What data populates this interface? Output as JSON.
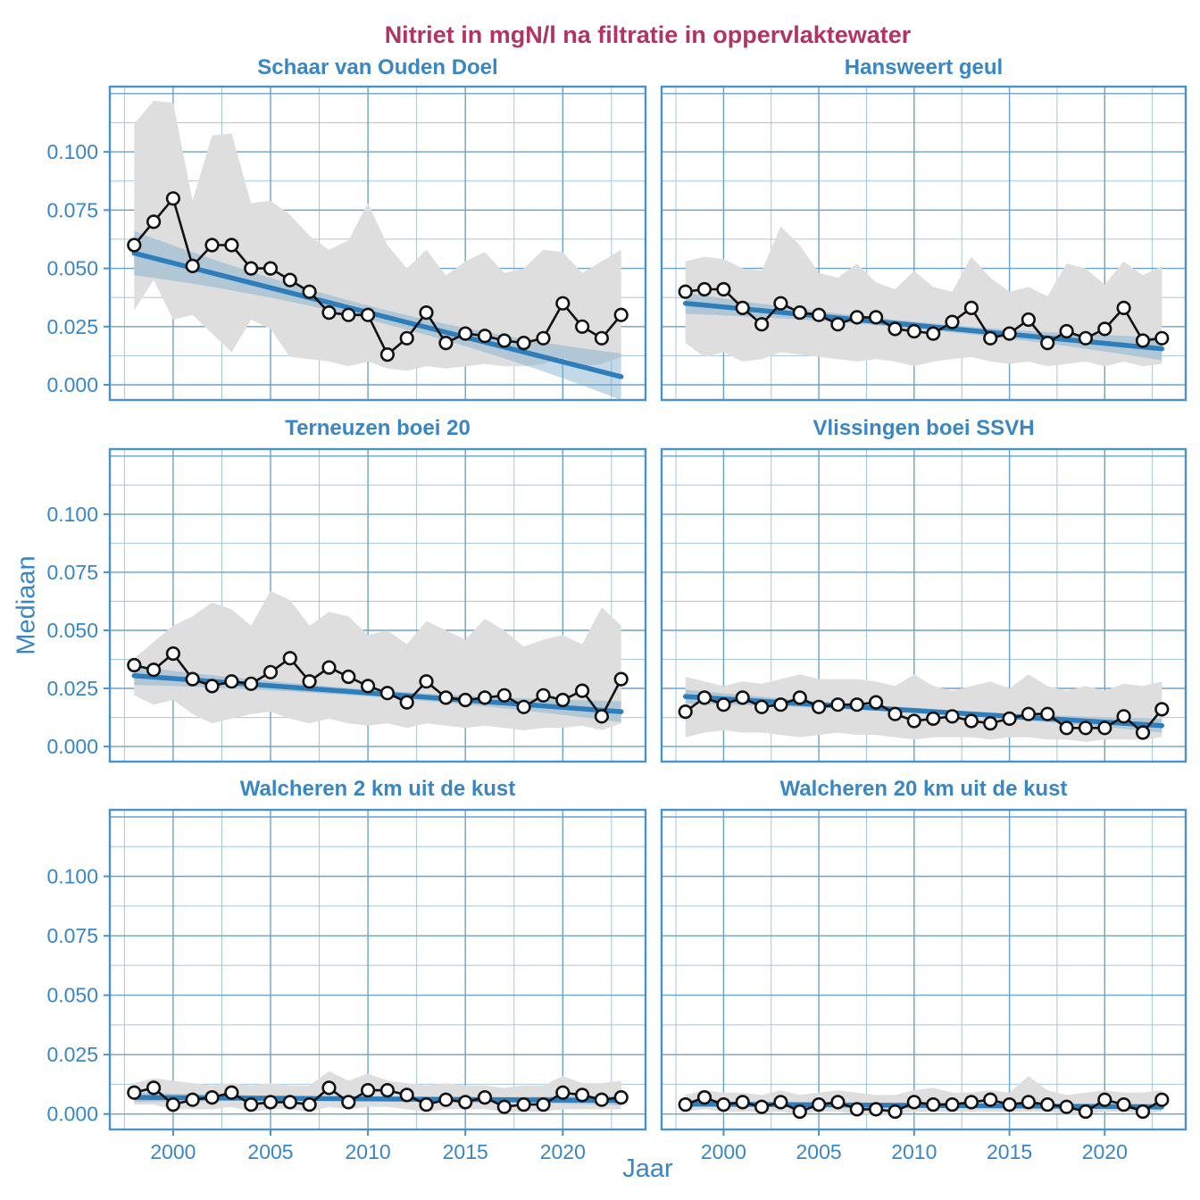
{
  "title": "Nitriet in mgN/l na filtratie in oppervlaktewater",
  "axes": {
    "x_label": "Jaar",
    "y_label": "Mediaan",
    "x_ticks": [
      2000,
      2005,
      2010,
      2015,
      2020
    ],
    "x_minor_ticks": [
      1997.5,
      2002.5,
      2007.5,
      2012.5,
      2017.5,
      2022.5
    ],
    "y_ticks": [
      0.0,
      0.025,
      0.05,
      0.075,
      0.1,
      0.125
    ],
    "y_tick_labels": [
      "0.000",
      "0.025",
      "0.050",
      "0.075",
      "0.100",
      ""
    ],
    "y_minor_ticks": [
      0.0125,
      0.0375,
      0.0625,
      0.0875,
      0.1125
    ],
    "x_domain": [
      1996.75,
      2024.25
    ],
    "y_domain": [
      -0.0065,
      0.128
    ]
  },
  "colors": {
    "title": "#b23366",
    "blue_text": "#3a86c4",
    "trend_line": "#2e7ebc",
    "trend_ci_fill": "rgb(125,170,205)",
    "trend_ci_opacity": 0.45,
    "range_band": "#dedede",
    "median_line": "#111111",
    "marker_fill": "#ffffff",
    "grid_major": "#6aa2cc",
    "grid_minor": "#a5c6e0",
    "panel_border": "#4b92c6"
  },
  "chart_data": [
    {
      "type": "line",
      "title": "Schaar van Ouden Doel",
      "x": [
        1998,
        1999,
        2000,
        2001,
        2002,
        2003,
        2004,
        2005,
        2006,
        2007,
        2008,
        2009,
        2010,
        2011,
        2012,
        2013,
        2014,
        2015,
        2016,
        2017,
        2018,
        2019,
        2020,
        2021,
        2022,
        2023
      ],
      "median": [
        0.06,
        0.07,
        0.08,
        0.051,
        0.06,
        0.06,
        0.05,
        0.05,
        0.045,
        0.04,
        0.031,
        0.03,
        0.03,
        0.013,
        0.02,
        0.031,
        0.018,
        0.022,
        0.021,
        0.019,
        0.018,
        0.02,
        0.035,
        0.025,
        0.02,
        0.03
      ],
      "band_upper": [
        0.112,
        0.122,
        0.121,
        0.079,
        0.107,
        0.108,
        0.078,
        0.079,
        0.073,
        0.064,
        0.058,
        0.062,
        0.078,
        0.06,
        0.05,
        0.058,
        0.047,
        0.053,
        0.057,
        0.048,
        0.05,
        0.058,
        0.057,
        0.048,
        0.053,
        0.058
      ],
      "band_lower": [
        0.032,
        0.045,
        0.028,
        0.03,
        0.022,
        0.014,
        0.028,
        0.024,
        0.012,
        0.011,
        0.01,
        0.008,
        0.01,
        0.007,
        0.006,
        0.008,
        0.007,
        0.008,
        0.009,
        0.008,
        0.008,
        0.009,
        0.012,
        0.008,
        0.009,
        0.012
      ],
      "trend": {
        "start": 0.0565,
        "end": 0.0035,
        "ci_start": 0.0095,
        "ci_mid": 0.003,
        "ci_end": 0.01
      }
    },
    {
      "type": "line",
      "title": "Hansweert geul",
      "x": [
        1998,
        1999,
        2000,
        2001,
        2002,
        2003,
        2004,
        2005,
        2006,
        2007,
        2008,
        2009,
        2010,
        2011,
        2012,
        2013,
        2014,
        2015,
        2016,
        2017,
        2018,
        2019,
        2020,
        2021,
        2022,
        2023
      ],
      "median": [
        0.04,
        0.041,
        0.041,
        0.033,
        0.026,
        0.035,
        0.031,
        0.03,
        0.026,
        0.029,
        0.029,
        0.024,
        0.023,
        0.022,
        0.027,
        0.033,
        0.02,
        0.022,
        0.028,
        0.018,
        0.023,
        0.02,
        0.024,
        0.033,
        0.019,
        0.02
      ],
      "band_upper": [
        0.053,
        0.055,
        0.054,
        0.05,
        0.049,
        0.068,
        0.06,
        0.048,
        0.046,
        0.052,
        0.044,
        0.041,
        0.049,
        0.042,
        0.04,
        0.055,
        0.046,
        0.04,
        0.042,
        0.038,
        0.052,
        0.05,
        0.043,
        0.053,
        0.047,
        0.051
      ],
      "band_lower": [
        0.018,
        0.012,
        0.014,
        0.01,
        0.011,
        0.014,
        0.013,
        0.012,
        0.011,
        0.01,
        0.011,
        0.01,
        0.008,
        0.01,
        0.011,
        0.012,
        0.01,
        0.009,
        0.01,
        0.008,
        0.009,
        0.01,
        0.008,
        0.01,
        0.008,
        0.009
      ],
      "trend": {
        "start": 0.035,
        "end": 0.0155,
        "ci_start": 0.0045,
        "ci_mid": 0.0015,
        "ci_end": 0.005
      }
    },
    {
      "type": "line",
      "title": "Terneuzen boei 20",
      "x": [
        1998,
        1999,
        2000,
        2001,
        2002,
        2003,
        2004,
        2005,
        2006,
        2007,
        2008,
        2009,
        2010,
        2011,
        2012,
        2013,
        2014,
        2015,
        2016,
        2017,
        2018,
        2019,
        2020,
        2021,
        2022,
        2023
      ],
      "median": [
        0.035,
        0.033,
        0.04,
        0.029,
        0.026,
        0.028,
        0.027,
        0.032,
        0.038,
        0.028,
        0.034,
        0.03,
        0.026,
        0.023,
        0.019,
        0.028,
        0.021,
        0.02,
        0.021,
        0.022,
        0.017,
        0.022,
        0.02,
        0.024,
        0.013,
        0.029
      ],
      "band_upper": [
        0.038,
        0.045,
        0.052,
        0.056,
        0.062,
        0.059,
        0.052,
        0.067,
        0.063,
        0.052,
        0.058,
        0.056,
        0.048,
        0.05,
        0.044,
        0.054,
        0.05,
        0.046,
        0.055,
        0.05,
        0.043,
        0.046,
        0.048,
        0.044,
        0.06,
        0.052
      ],
      "band_lower": [
        0.022,
        0.018,
        0.02,
        0.014,
        0.01,
        0.012,
        0.014,
        0.015,
        0.012,
        0.01,
        0.012,
        0.01,
        0.009,
        0.01,
        0.008,
        0.01,
        0.009,
        0.008,
        0.009,
        0.008,
        0.007,
        0.008,
        0.008,
        0.009,
        0.007,
        0.01
      ],
      "trend": {
        "start": 0.0305,
        "end": 0.015,
        "ci_start": 0.004,
        "ci_mid": 0.0015,
        "ci_end": 0.0045
      }
    },
    {
      "type": "line",
      "title": "Vlissingen boei SSVH",
      "x": [
        1998,
        1999,
        2000,
        2001,
        2002,
        2003,
        2004,
        2005,
        2006,
        2007,
        2008,
        2009,
        2010,
        2011,
        2012,
        2013,
        2014,
        2015,
        2016,
        2017,
        2018,
        2019,
        2020,
        2021,
        2022,
        2023
      ],
      "median": [
        0.015,
        0.021,
        0.018,
        0.021,
        0.017,
        0.018,
        0.021,
        0.017,
        0.018,
        0.018,
        0.019,
        0.014,
        0.011,
        0.012,
        0.013,
        0.011,
        0.01,
        0.012,
        0.014,
        0.014,
        0.008,
        0.008,
        0.008,
        0.013,
        0.006,
        0.016
      ],
      "band_upper": [
        0.03,
        0.028,
        0.026,
        0.028,
        0.027,
        0.029,
        0.031,
        0.029,
        0.029,
        0.029,
        0.028,
        0.026,
        0.031,
        0.026,
        0.024,
        0.026,
        0.028,
        0.025,
        0.031,
        0.026,
        0.024,
        0.026,
        0.024,
        0.027,
        0.026,
        0.028
      ],
      "band_lower": [
        0.004,
        0.006,
        0.007,
        0.006,
        0.006,
        0.005,
        0.004,
        0.005,
        0.006,
        0.005,
        0.005,
        0.004,
        0.003,
        0.004,
        0.004,
        0.004,
        0.003,
        0.004,
        0.004,
        0.003,
        0.003,
        0.002,
        0.003,
        0.003,
        0.003,
        0.004
      ],
      "trend": {
        "start": 0.0215,
        "end": 0.009,
        "ci_start": 0.003,
        "ci_mid": 0.001,
        "ci_end": 0.003
      }
    },
    {
      "type": "line",
      "title": "Walcheren 2 km uit de kust",
      "x": [
        1998,
        1999,
        2000,
        2001,
        2002,
        2003,
        2004,
        2005,
        2006,
        2007,
        2008,
        2009,
        2010,
        2011,
        2012,
        2013,
        2014,
        2015,
        2016,
        2017,
        2018,
        2019,
        2020,
        2021,
        2022,
        2023
      ],
      "median": [
        0.009,
        0.011,
        0.004,
        0.006,
        0.007,
        0.009,
        0.004,
        0.005,
        0.005,
        0.004,
        0.011,
        0.005,
        0.01,
        0.01,
        0.008,
        0.004,
        0.006,
        0.005,
        0.007,
        0.003,
        0.004,
        0.004,
        0.009,
        0.008,
        0.006,
        0.007
      ],
      "band_upper": [
        0.013,
        0.015,
        0.014,
        0.013,
        0.012,
        0.013,
        0.012,
        0.013,
        0.012,
        0.012,
        0.018,
        0.014,
        0.017,
        0.014,
        0.013,
        0.012,
        0.013,
        0.012,
        0.012,
        0.011,
        0.012,
        0.012,
        0.016,
        0.013,
        0.013,
        0.014
      ],
      "band_lower": [
        0.004,
        0.004,
        0.002,
        0.002,
        0.002,
        0.003,
        0.001,
        0.002,
        0.002,
        0.001,
        0.003,
        0.002,
        0.003,
        0.003,
        0.002,
        0.001,
        0.002,
        0.002,
        0.002,
        0.001,
        0.001,
        0.001,
        0.002,
        0.002,
        0.002,
        0.002
      ],
      "trend": {
        "start": 0.007,
        "end": 0.0057,
        "ci_start": 0.002,
        "ci_mid": 0.0008,
        "ci_end": 0.002
      }
    },
    {
      "type": "line",
      "title": "Walcheren 20 km uit de kust",
      "x": [
        1998,
        1999,
        2000,
        2001,
        2002,
        2003,
        2004,
        2005,
        2006,
        2007,
        2008,
        2009,
        2010,
        2011,
        2012,
        2013,
        2014,
        2015,
        2016,
        2017,
        2018,
        2019,
        2020,
        2021,
        2022,
        2023
      ],
      "median": [
        0.004,
        0.007,
        0.004,
        0.005,
        0.003,
        0.005,
        0.001,
        0.004,
        0.005,
        0.002,
        0.002,
        0.001,
        0.005,
        0.004,
        0.004,
        0.005,
        0.006,
        0.004,
        0.005,
        0.004,
        0.003,
        0.001,
        0.006,
        0.004,
        0.001,
        0.006
      ],
      "band_upper": [
        0.008,
        0.01,
        0.009,
        0.009,
        0.008,
        0.01,
        0.008,
        0.009,
        0.01,
        0.009,
        0.008,
        0.008,
        0.01,
        0.011,
        0.009,
        0.009,
        0.01,
        0.009,
        0.016,
        0.01,
        0.008,
        0.009,
        0.01,
        0.009,
        0.009,
        0.01
      ],
      "band_lower": [
        0.001,
        0.002,
        0.001,
        0.001,
        0.001,
        0.001,
        0.0,
        0.001,
        0.001,
        0.0,
        0.0,
        0.0,
        0.001,
        0.001,
        0.001,
        0.001,
        0.001,
        0.001,
        0.001,
        0.001,
        0.0,
        0.0,
        0.001,
        0.001,
        0.0,
        0.001
      ],
      "trend": {
        "start": 0.0042,
        "end": 0.003,
        "ci_start": 0.0012,
        "ci_mid": 0.0005,
        "ci_end": 0.0013
      }
    }
  ]
}
